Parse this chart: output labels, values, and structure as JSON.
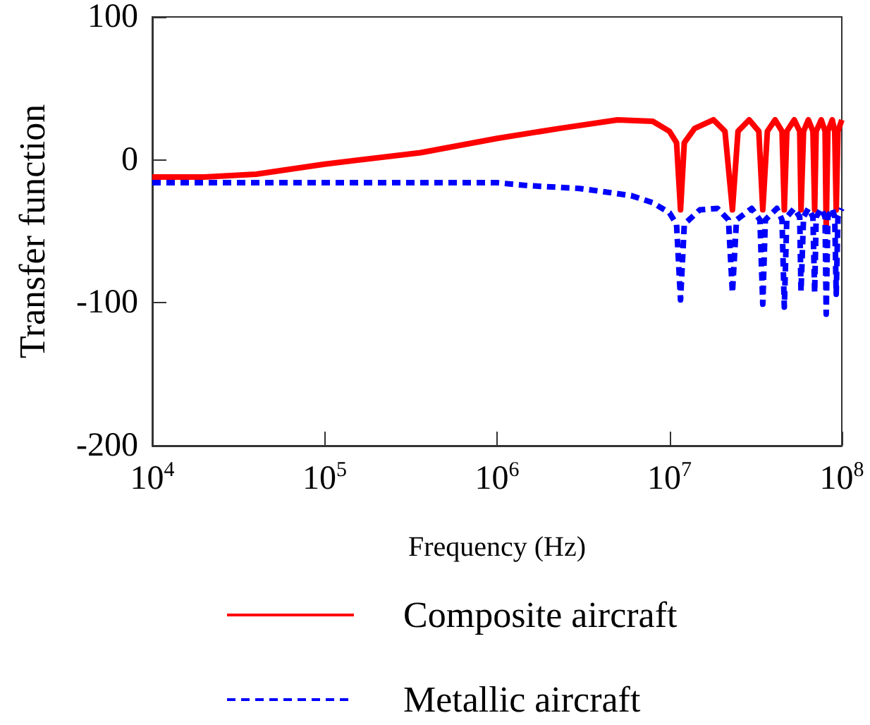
{
  "chart_data": {
    "type": "line",
    "xlabel": "Frequency (Hz)",
    "ylabel": "Transfer function",
    "log": "x",
    "grid": false,
    "legend": "bottom",
    "marker": "none",
    "xlim": [
      10000,
      100000000
    ],
    "xticks": [
      {
        "value": 10000,
        "label": "10$^{4}$"
      },
      {
        "value": 100000,
        "label": "10$^{5}$"
      },
      {
        "value": 1000000,
        "label": "10$^{6}$"
      },
      {
        "value": 10000000,
        "label": "10$^{7}$"
      },
      {
        "value": 100000000,
        "label": "10$^{8}$"
      }
    ],
    "ylim": [
      -200,
      100
    ],
    "yticks": [
      100,
      0,
      -100,
      -200
    ],
    "series": [
      {
        "name": "Composite aircraft",
        "color": "#ff0000",
        "line_style": "solid",
        "x": [
          10000,
          20000,
          40000,
          100000,
          360000,
          1000000,
          2300000,
          5000000,
          8000000,
          10000000,
          11000000,
          11600000,
          12200000,
          14000000,
          18000000,
          21000000,
          23200000,
          25000000,
          29000000,
          33000000,
          34800000,
          37000000,
          41000000,
          45000000,
          46400000,
          48000000,
          53000000,
          57000000,
          58000000,
          60000000,
          64000000,
          68000000,
          69600000,
          71000000,
          76000000,
          80000000,
          81200000,
          83000000,
          88000000,
          91000000,
          92800000,
          95000000,
          100000000
        ],
        "values": [
          -12,
          -12,
          -10,
          -3,
          5,
          15,
          22,
          28,
          27,
          20,
          12,
          -35,
          12,
          22,
          28,
          20,
          -35,
          20,
          28,
          20,
          -35,
          20,
          28,
          20,
          -35,
          20,
          28,
          20,
          -35,
          20,
          28,
          20,
          -35,
          20,
          28,
          20,
          -50,
          20,
          28,
          20,
          -35,
          20,
          28
        ]
      },
      {
        "name": "Metallic aircraft",
        "color": "#0000ff",
        "line_style": "dashed",
        "x": [
          10000,
          1000000,
          1500000,
          3000000,
          4000000,
          6000000,
          8000000,
          10000000,
          11000000,
          11600000,
          12200000,
          15000000,
          19000000,
          22000000,
          23200000,
          24500000,
          30000000,
          33500000,
          34800000,
          36000000,
          42000000,
          45000000,
          46400000,
          48000000,
          53000000,
          57000000,
          58000000,
          60000000,
          64000000,
          68000000,
          69600000,
          71000000,
          76000000,
          80000000,
          81200000,
          83000000,
          88000000,
          91000000,
          92800000,
          95000000,
          100000000
        ],
        "values": [
          -16,
          -16,
          -18,
          -20,
          -22,
          -25,
          -30,
          -37,
          -45,
          -98,
          -45,
          -35,
          -34,
          -42,
          -93,
          -42,
          -34,
          -42,
          -101,
          -42,
          -34,
          -42,
          -103,
          -40,
          -34,
          -40,
          -92,
          -40,
          -34,
          -40,
          -93,
          -40,
          -34,
          -40,
          -108,
          -40,
          -34,
          -40,
          -94,
          -40,
          -34
        ]
      }
    ]
  }
}
